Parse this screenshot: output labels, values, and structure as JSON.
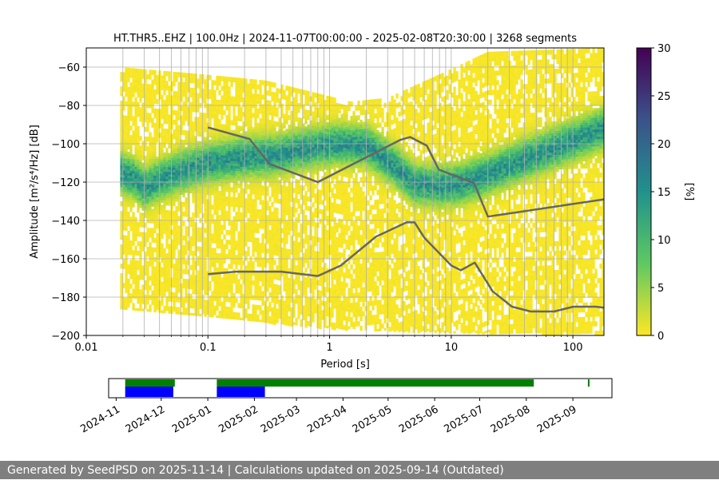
{
  "chart_data": [
    {
      "type": "heatmap",
      "title": "HT.THR5..EHZ | 100.0Hz | 2024-11-07T00:00:00 - 2025-02-08T20:30:00 | 3268 segments",
      "xlabel": "Period [s]",
      "ylabel": "Amplitude [m²/s⁴/Hz] [dB]",
      "xscale": "log",
      "xlim": [
        0.01,
        180
      ],
      "ylim": [
        -200,
        -50
      ],
      "xticks": [
        {
          "value": 0.01,
          "label": "0.01"
        },
        {
          "value": 0.1,
          "label": "0.1"
        },
        {
          "value": 1,
          "label": "1"
        },
        {
          "value": 10,
          "label": "10"
        },
        {
          "value": 100,
          "label": "100"
        }
      ],
      "yticks": [
        {
          "value": -60,
          "label": "−60"
        },
        {
          "value": -80,
          "label": "−80"
        },
        {
          "value": -100,
          "label": "−100"
        },
        {
          "value": -120,
          "label": "−120"
        },
        {
          "value": -140,
          "label": "−140"
        },
        {
          "value": -160,
          "label": "−160"
        },
        {
          "value": -180,
          "label": "−180"
        },
        {
          "value": -200,
          "label": "−200"
        }
      ],
      "colorbar": {
        "label": "[%]",
        "range": [
          0,
          30
        ],
        "ticks": [
          {
            "value": 0,
            "label": "0"
          },
          {
            "value": 5,
            "label": "5"
          },
          {
            "value": 10,
            "label": "10"
          },
          {
            "value": 15,
            "label": "15"
          },
          {
            "value": 20,
            "label": "20"
          },
          {
            "value": 25,
            "label": "25"
          },
          {
            "value": 30,
            "label": "30"
          }
        ],
        "colors": [
          "#fde725",
          "#5ec962",
          "#21918c",
          "#3b528b",
          "#440154"
        ]
      },
      "noise_models": [
        {
          "name": "high-noise-model",
          "color": "#666666",
          "points": [
            [
              0.1,
              -91.5
            ],
            [
              0.22,
              -97.5
            ],
            [
              0.32,
              -110.5
            ],
            [
              0.8,
              -120
            ],
            [
              3.8,
              -98
            ],
            [
              4.6,
              -96.5
            ],
            [
              6.3,
              -101
            ],
            [
              7.9,
              -113.5
            ],
            [
              15.4,
              -120.5
            ],
            [
              20,
              -138
            ],
            [
              180,
              -129
            ]
          ]
        },
        {
          "name": "low-noise-model",
          "color": "#666666",
          "points": [
            [
              0.1,
              -168
            ],
            [
              0.17,
              -166.7
            ],
            [
              0.4,
              -166.7
            ],
            [
              0.8,
              -169
            ],
            [
              1.24,
              -163.5
            ],
            [
              2.4,
              -148.5
            ],
            [
              4.3,
              -141
            ],
            [
              5.0,
              -141
            ],
            [
              6.0,
              -149
            ],
            [
              10,
              -163.5
            ],
            [
              12,
              -166
            ],
            [
              15.6,
              -162
            ],
            [
              21.9,
              -177
            ],
            [
              31.6,
              -185
            ],
            [
              45,
              -187.5
            ],
            [
              70,
              -187.5
            ],
            [
              101,
              -185
            ],
            [
              154,
              -185
            ],
            [
              180,
              -185.5
            ]
          ]
        }
      ],
      "psd_density": {
        "period_range": [
          0.019,
          180
        ],
        "mode": [
          [
            0.019,
            -115
          ],
          [
            0.025,
            -118
          ],
          [
            0.03,
            -123
          ],
          [
            0.05,
            -116
          ],
          [
            0.1,
            -110
          ],
          [
            0.2,
            -107
          ],
          [
            0.35,
            -106
          ],
          [
            0.6,
            -103
          ],
          [
            1.2,
            -100
          ],
          [
            2.0,
            -101
          ],
          [
            3.5,
            -112
          ],
          [
            5,
            -121
          ],
          [
            8,
            -122
          ],
          [
            12,
            -121
          ],
          [
            20,
            -116
          ],
          [
            40,
            -108
          ],
          [
            80,
            -101
          ],
          [
            180,
            -92
          ]
        ],
        "upper": [
          [
            0.019,
            -60
          ],
          [
            0.1,
            -64
          ],
          [
            0.3,
            -67
          ],
          [
            1.5,
            -78
          ],
          [
            3,
            -76
          ],
          [
            10,
            -61
          ],
          [
            20,
            -52
          ],
          [
            180,
            -50
          ]
        ],
        "lower": [
          [
            0.019,
            -185
          ],
          [
            0.1,
            -190
          ],
          [
            1,
            -196
          ],
          [
            10,
            -198
          ],
          [
            180,
            -199
          ]
        ],
        "core_halfwidth_db": 9
      }
    },
    {
      "type": "timeline",
      "time_range": [
        "2024-10-27",
        "2025-09-27"
      ],
      "tick_labels": [
        "2024-11",
        "2024-12",
        "2025-01",
        "2025-02",
        "2025-03",
        "2025-04",
        "2025-05",
        "2025-06",
        "2025-07",
        "2025-08",
        "2025-09"
      ],
      "tick_dates": [
        "2024-11-01",
        "2024-12-01",
        "2025-01-01",
        "2025-02-01",
        "2025-03-01",
        "2025-04-01",
        "2025-05-01",
        "2025-06-01",
        "2025-07-01",
        "2025-08-01",
        "2025-09-01"
      ],
      "series": [
        {
          "name": "data-available",
          "color": "#008000",
          "intervals": [
            [
              "2024-11-07",
              "2024-12-10"
            ],
            [
              "2025-01-07",
              "2025-08-06"
            ],
            [
              "2025-09-11",
              "2025-09-12"
            ]
          ]
        },
        {
          "name": "psd-computed",
          "color": "#0000ff",
          "intervals": [
            [
              "2024-11-07",
              "2024-12-09"
            ],
            [
              "2025-01-07",
              "2025-02-08"
            ]
          ]
        }
      ]
    }
  ],
  "footer": {
    "text": "Generated by SeedPSD on 2025-11-14 | Calculations updated on 2025-09-14 (Outdated)"
  }
}
